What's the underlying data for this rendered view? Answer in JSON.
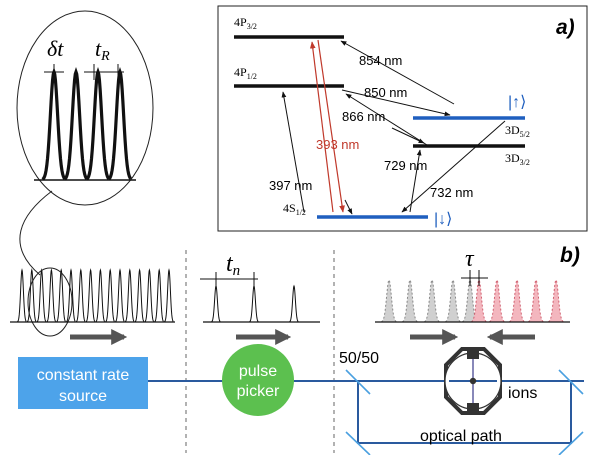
{
  "panel_a": {
    "label": "a)",
    "levels": {
      "p32": "4P",
      "p32_sub": "3/2",
      "p12": "4P",
      "p12_sub": "1/2",
      "s12": "4S",
      "s12_sub": "1/2",
      "d52": "3D",
      "d52_sub": "5/2",
      "d32": "3D",
      "d32_sub": "3/2"
    },
    "transitions": {
      "t854": "854 nm",
      "t850": "850 nm",
      "t866": "866 nm",
      "t393": "393 nm",
      "t397": "397 nm",
      "t729": "729 nm",
      "t732": "732 nm"
    },
    "kets": {
      "up": "|↑⟩",
      "down": "|↓⟩"
    },
    "colors": {
      "red": "#c0392b",
      "blue": "#1f5fbf",
      "level_black": "#111111"
    }
  },
  "panel_b": {
    "label": "b)",
    "zoom_labels": {
      "delta_t": "δt",
      "t_r": "t",
      "t_r_sub": "R"
    },
    "symbols": {
      "t_n": "t",
      "t_n_sub": "n",
      "tau": "τ"
    },
    "components": {
      "source": "constant rate\nsource",
      "source_line1": "constant rate",
      "source_line2": "source",
      "picker_line1": "pulse",
      "picker_line2": "picker",
      "splitter": "50/50",
      "ions": "ions",
      "path": "optical path"
    },
    "colors": {
      "source_box": "#4da3ea",
      "picker_circle": "#5cc04f",
      "beam": "#2a5a9e",
      "mirror": "#4aa0e0",
      "arrow": "#555555",
      "pulse_red": "#f3b6be",
      "pulse_gray": "#c8c8c8"
    }
  }
}
